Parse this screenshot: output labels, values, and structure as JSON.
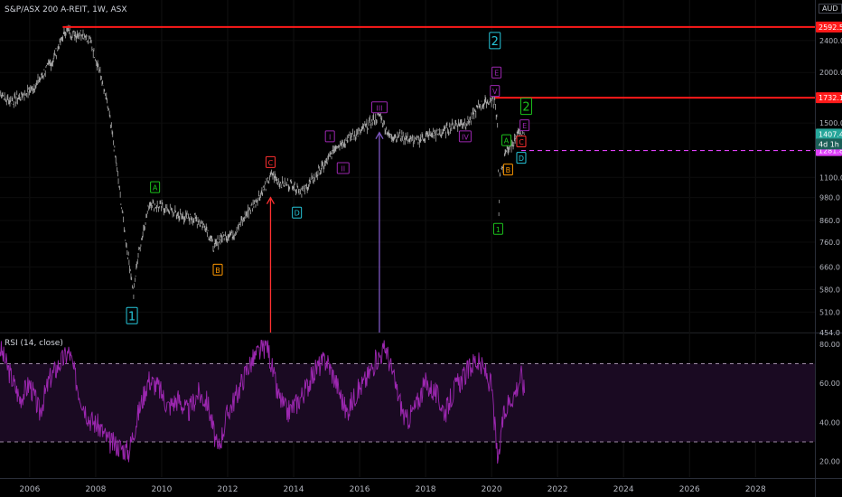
{
  "header": {
    "symbol_title": "S&P/ASX 200 A-REIT, 1W, ASX",
    "currency": "AUD"
  },
  "rsi_panel": {
    "title": "RSI (14, close)",
    "upper_band": 70,
    "lower_band": 30
  },
  "colors": {
    "background": "#000000",
    "price_line": "#c8c8c8",
    "resistance_red": "#ff1a1a",
    "support_magenta": "#e040fb",
    "rsi_line": "#9c27b0",
    "rsi_band_fill": "#1a0a22",
    "cyan_label": "#26c6da",
    "green_label": "#1cc21c",
    "orange_label": "#ff9800",
    "red_label": "#ff3030",
    "purple_label": "#9c27b0",
    "violet_arrow": "#7e57c2"
  },
  "chart_data": [
    {
      "type": "line",
      "title": "S&P/ASX 200 A-REIT, 1W, ASX",
      "currency": "AUD",
      "x_axis": {
        "ticks": [
          "2006",
          "2008",
          "2010",
          "2012",
          "2014",
          "2016",
          "2018",
          "2020",
          "2022",
          "2024",
          "2026",
          "2028"
        ],
        "range": [
          2005.1,
          2029.8
        ]
      },
      "y_axis": {
        "scale": "log",
        "ticks": [
          "2400.0",
          "2000.0",
          "1500.0",
          "1100.0",
          "980.0",
          "860.0",
          "760.0",
          "660.0",
          "580.0",
          "510.0",
          "454.0"
        ],
        "range": [
          454,
          2700
        ]
      },
      "series": [
        {
          "x": [
            2005.1,
            2005.3,
            2005.5,
            2005.8,
            2006.1,
            2006.4,
            2006.7,
            2006.95,
            2007.1,
            2007.35,
            2007.6,
            2007.85,
            2008.1,
            2008.4,
            2008.65,
            2008.9,
            2009.05,
            2009.15,
            2009.25,
            2009.45,
            2009.65,
            2009.85,
            2010.2,
            2010.6,
            2011.0,
            2011.35,
            2011.6,
            2011.8,
            2012.2,
            2012.6,
            2013.0,
            2013.35,
            2013.6,
            2013.9,
            2014.3,
            2014.7,
            2015.0,
            2015.3,
            2015.7,
            2016.1,
            2016.6,
            2016.9,
            2017.3,
            2017.7,
            2018.1,
            2018.5,
            2018.9,
            2019.3,
            2019.6,
            2019.9,
            2020.1,
            2020.18,
            2020.22,
            2020.25,
            2020.35,
            2020.45,
            2020.6,
            2020.75,
            2020.9,
            2021.0
          ],
          "y": [
            1780,
            1720,
            1700,
            1760,
            1830,
            1980,
            2150,
            2400,
            2560,
            2480,
            2500,
            2380,
            2050,
            1600,
            1150,
            780,
            650,
            560,
            680,
            820,
            960,
            930,
            920,
            880,
            870,
            830,
            735,
            780,
            800,
            900,
            1000,
            1120,
            1060,
            1060,
            1020,
            1120,
            1200,
            1320,
            1380,
            1440,
            1570,
            1390,
            1390,
            1350,
            1400,
            1420,
            1490,
            1500,
            1650,
            1700,
            1690,
            1500,
            880,
            1100,
            1180,
            1280,
            1320,
            1380,
            1420,
            1407.4
          ]
        }
      ],
      "horizontal_lines": [
        {
          "price": 2592.5,
          "label": "2592.5",
          "style": "solid",
          "color": "#ff1a1a"
        },
        {
          "price": 1732.1,
          "label": "1732.1",
          "style": "solid",
          "color": "#ff1a1a"
        },
        {
          "price": 1281.8,
          "label": "1281.8",
          "style": "dashed",
          "color": "#e040fb"
        }
      ],
      "price_tags": [
        {
          "price": 1407.4,
          "label": "1407.4",
          "color": "#26a69a"
        },
        {
          "price": 1330,
          "label": "4d 1h",
          "color": "#1b5e57"
        }
      ],
      "wave_labels": [
        {
          "text": "1",
          "x": 2009.1,
          "price": 500,
          "color": "#26c6da",
          "size": "large"
        },
        {
          "text": "2",
          "x": 2020.1,
          "price": 2400,
          "color": "#26c6da",
          "size": "large"
        },
        {
          "text": "A",
          "x": 2009.8,
          "price": 1040,
          "color": "#1cc21c",
          "size": "small"
        },
        {
          "text": "B",
          "x": 2011.7,
          "price": 650,
          "color": "#ff9800",
          "size": "small"
        },
        {
          "text": "C",
          "x": 2013.3,
          "price": 1200,
          "color": "#ff3030",
          "size": "small"
        },
        {
          "text": "D",
          "x": 2014.1,
          "price": 900,
          "color": "#26c6da",
          "size": "small"
        },
        {
          "text": "I",
          "x": 2015.1,
          "price": 1390,
          "color": "#9c27b0",
          "size": "small"
        },
        {
          "text": "II",
          "x": 2015.5,
          "price": 1160,
          "color": "#9c27b0",
          "size": "small"
        },
        {
          "text": "III",
          "x": 2016.6,
          "price": 1640,
          "color": "#9c27b0",
          "size": "small"
        },
        {
          "text": "IV",
          "x": 2019.2,
          "price": 1390,
          "color": "#9c27b0",
          "size": "small"
        },
        {
          "text": "V",
          "x": 2020.1,
          "price": 1800,
          "color": "#9c27b0",
          "size": "small"
        },
        {
          "text": "E",
          "x": 2020.15,
          "price": 2000,
          "color": "#9c27b0",
          "size": "small"
        },
        {
          "text": "1",
          "x": 2020.2,
          "price": 820,
          "color": "#1cc21c",
          "size": "small"
        },
        {
          "text": "A",
          "x": 2020.45,
          "price": 1360,
          "color": "#1cc21c",
          "size": "small"
        },
        {
          "text": "B",
          "x": 2020.5,
          "price": 1150,
          "color": "#ff9800",
          "size": "small"
        },
        {
          "text": "C",
          "x": 2020.9,
          "price": 1350,
          "color": "#ff3030",
          "size": "small"
        },
        {
          "text": "D",
          "x": 2020.9,
          "price": 1230,
          "color": "#26c6da",
          "size": "small"
        },
        {
          "text": "E",
          "x": 2021.0,
          "price": 1480,
          "color": "#9c27b0",
          "size": "small"
        },
        {
          "text": "2",
          "x": 2021.05,
          "price": 1650,
          "color": "#1cc21c",
          "size": "large"
        }
      ],
      "arrows": [
        {
          "x": 2013.3,
          "to_price": 980,
          "color": "#ff3030"
        },
        {
          "x": 2016.6,
          "to_price": 1420,
          "color": "#7e57c2"
        }
      ]
    },
    {
      "type": "line",
      "title": "RSI (14, close)",
      "y_axis": {
        "ticks": [
          "80.00",
          "60.00",
          "40.00",
          "20.00"
        ],
        "range": [
          12,
          85
        ]
      },
      "bands": [
        70,
        30
      ],
      "series": [
        {
          "x": [
            2005.1,
            2005.4,
            2005.7,
            2006.0,
            2006.3,
            2006.6,
            2006.9,
            2007.2,
            2007.5,
            2007.8,
            2008.1,
            2008.4,
            2008.7,
            2009.0,
            2009.3,
            2009.6,
            2009.9,
            2010.2,
            2010.5,
            2010.8,
            2011.1,
            2011.4,
            2011.7,
            2012.0,
            2012.3,
            2012.6,
            2012.9,
            2013.2,
            2013.5,
            2013.8,
            2014.1,
            2014.4,
            2014.7,
            2015.0,
            2015.3,
            2015.6,
            2015.9,
            2016.2,
            2016.5,
            2016.8,
            2017.1,
            2017.4,
            2017.7,
            2018.0,
            2018.3,
            2018.6,
            2018.9,
            2019.2,
            2019.5,
            2019.8,
            2020.0,
            2020.2,
            2020.3,
            2020.5,
            2020.7,
            2020.9,
            2021.0
          ],
          "y": [
            78,
            65,
            52,
            60,
            45,
            62,
            70,
            76,
            55,
            42,
            38,
            30,
            28,
            25,
            45,
            62,
            58,
            48,
            52,
            45,
            55,
            50,
            25,
            45,
            55,
            68,
            75,
            80,
            55,
            45,
            50,
            58,
            68,
            72,
            60,
            45,
            55,
            62,
            72,
            78,
            58,
            40,
            48,
            60,
            55,
            45,
            58,
            64,
            72,
            66,
            58,
            17,
            38,
            50,
            55,
            64,
            55
          ]
        }
      ]
    }
  ]
}
